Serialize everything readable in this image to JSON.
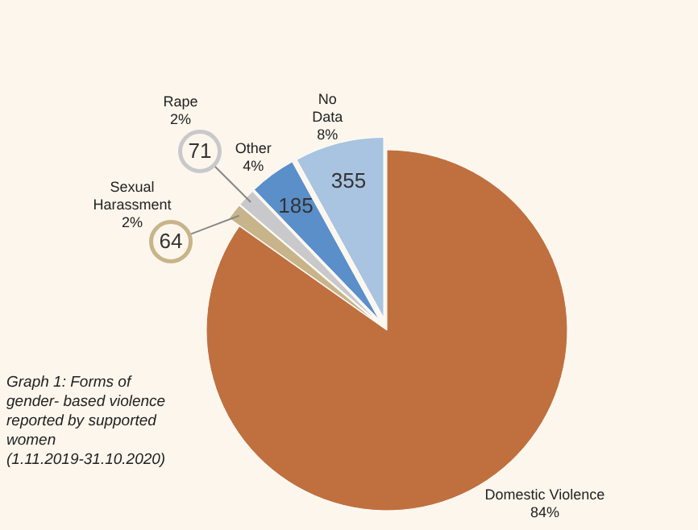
{
  "chart_data": {
    "type": "pie",
    "title": "Graph 1: Forms of gender- based violence reported by supported women (1.11.2019-31.10.2020)",
    "categories": [
      "Domestic Violence\n84%",
      "Sexual\nHarassment\n2%",
      "Rape\n2%",
      "Other\n4%",
      "No\nData\n8%"
    ],
    "values": [
      3760,
      64,
      71,
      185,
      355
    ],
    "value_labels": [
      null,
      "64",
      "71",
      "185",
      "355"
    ],
    "colors": [
      "#c0703e",
      "#c8b48a",
      "#c9c9cb",
      "#5b8fc9",
      "#a9c4e0"
    ]
  }
}
